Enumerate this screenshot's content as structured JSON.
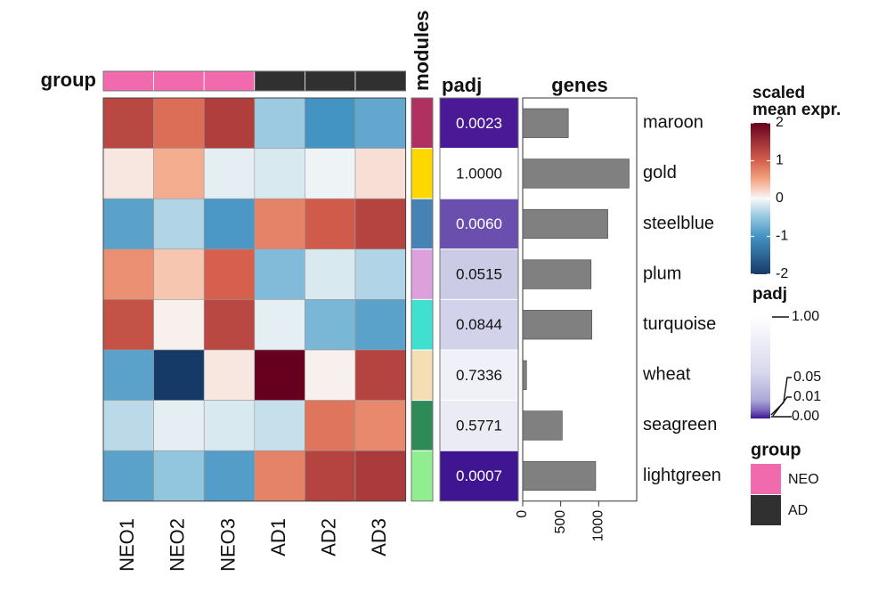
{
  "chart_data": {
    "type": "heatmap",
    "samples": [
      "NEO1",
      "NEO2",
      "NEO3",
      "AD1",
      "AD2",
      "AD3"
    ],
    "sample_groups": [
      "NEO",
      "NEO",
      "NEO",
      "AD",
      "AD",
      "AD"
    ],
    "modules": [
      "maroon",
      "gold",
      "steelblue",
      "plum",
      "turquoise",
      "wheat",
      "seagreen",
      "lightgreen"
    ],
    "module_colors": [
      "#b03060",
      "#ffd700",
      "#4682b4",
      "#dda0dd",
      "#40e0d0",
      "#f5deb3",
      "#2e8b57",
      "#90ee90"
    ],
    "values": [
      [
        1.25,
        0.9,
        1.35,
        -0.45,
        -1.0,
        -0.8
      ],
      [
        0.1,
        0.45,
        -0.1,
        -0.15,
        -0.05,
        0.15
      ],
      [
        -0.85,
        -0.35,
        -0.95,
        0.75,
        1.05,
        1.3
      ],
      [
        0.65,
        0.3,
        1.0,
        -0.6,
        -0.15,
        -0.35
      ],
      [
        1.15,
        0.05,
        1.25,
        -0.1,
        -0.65,
        -0.85
      ],
      [
        -0.85,
        -2.0,
        0.1,
        2.0,
        0.05,
        1.3
      ],
      [
        -0.3,
        -0.1,
        -0.15,
        -0.25,
        0.85,
        0.7
      ],
      [
        -0.85,
        -0.5,
        -0.9,
        0.75,
        1.3,
        1.4
      ]
    ],
    "padj": [
      "0.0023",
      "1.0000",
      "0.0060",
      "0.0515",
      "0.0844",
      "0.7336",
      "0.5771",
      "0.0007"
    ],
    "padj_colors": [
      "#4a1a96",
      "#ffffff",
      "#6a4fae",
      "#cbcbe6",
      "#d2d2ea",
      "#f0f0f8",
      "#ebebf5",
      "#3f1592"
    ],
    "padj_text_colors": [
      "#ffffff",
      "#111111",
      "#ffffff",
      "#111111",
      "#111111",
      "#111111",
      "#111111",
      "#ffffff"
    ],
    "genes": [
      600,
      1400,
      1120,
      900,
      910,
      50,
      520,
      960
    ],
    "genes_axis": {
      "ticks": [
        "0",
        "500",
        "1000"
      ],
      "tick_values": [
        0,
        500,
        1000
      ],
      "max": 1500
    },
    "color_scale": {
      "min": -2,
      "max": 2,
      "ticks": [
        "2",
        "1",
        "0",
        "-1",
        "-2"
      ],
      "tick_values": [
        2,
        1,
        0,
        -1,
        -2
      ]
    },
    "titles": {
      "group": "group",
      "modules": "modules",
      "padj": "padj",
      "genes": "genes"
    },
    "legends": {
      "expr_title_1": "scaled",
      "expr_title_2": "mean expr.",
      "padj_title": "padj",
      "padj_ticks": [
        "1.00",
        "0.05",
        "0.01",
        "0.00"
      ],
      "group_title": "group",
      "group_items": [
        {
          "label": "NEO",
          "color": "#f06aad"
        },
        {
          "label": "AD",
          "color": "#303030"
        }
      ]
    }
  }
}
